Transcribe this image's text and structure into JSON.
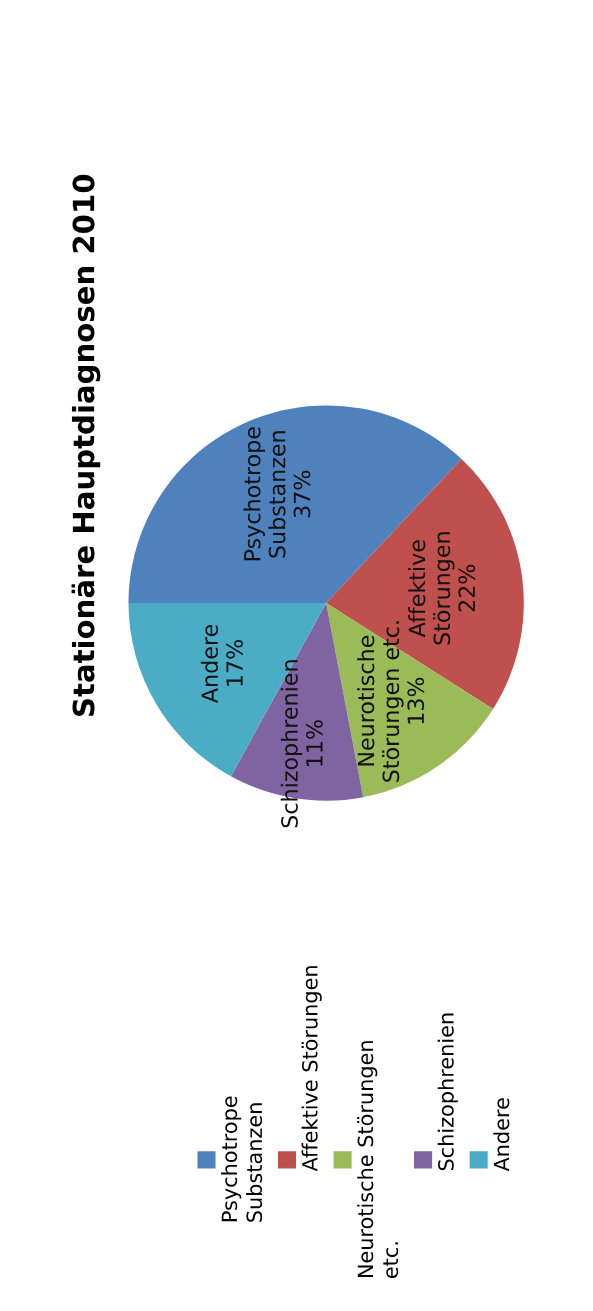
{
  "chart_data": {
    "type": "pie",
    "title": "Stationäre Hauptdiagnosen 2010",
    "categories": [
      "Psychotrope Substanzen",
      "Affektive Störungen",
      "Neurotische Störungen etc.",
      "Schizophrenien",
      "Andere"
    ],
    "values": [
      37,
      22,
      13,
      11,
      17
    ],
    "value_labels": [
      "37%",
      "22%",
      "13%",
      "11%",
      "17%"
    ],
    "colors": [
      "#4f81bd",
      "#c0504d",
      "#9bbb59",
      "#8064a2",
      "#4bacc6"
    ],
    "legend": "bottom"
  }
}
